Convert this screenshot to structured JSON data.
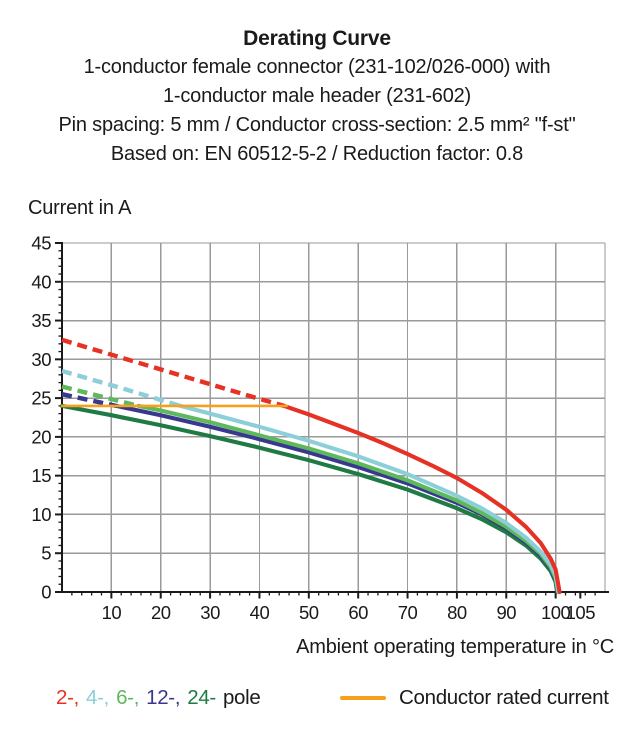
{
  "header": {
    "title": "Derating Curve",
    "subtitle_lines": [
      "1-conductor female connector (231-102/026-000) with",
      "1-conductor male header (231-602)",
      "Pin spacing: 5 mm / Conductor cross-section: 2.5 mm² \"f-st\"",
      "Based on: EN 60512-5-2 / Reduction factor: 0.8"
    ]
  },
  "chart_data": {
    "type": "line",
    "title": "Derating Curve",
    "xlabel": "Ambient operating temperature in °C",
    "ylabel": "Current in A",
    "xlim": [
      0,
      110
    ],
    "ylim": [
      0,
      45
    ],
    "grid": true,
    "x_gridline_step": 10,
    "y_gridline_step": 5,
    "x_minor_tick_step": 2,
    "y_minor_tick_step": 1,
    "x_tick_labels": [
      10,
      20,
      30,
      40,
      50,
      60,
      70,
      80,
      90,
      100,
      105
    ],
    "y_tick_labels": [
      0,
      5,
      10,
      15,
      20,
      25,
      30,
      35,
      40,
      45
    ],
    "rated_current_A": 24,
    "colors": {
      "grid": "#9a9a9a",
      "axis": "#1a1a1a",
      "rated": "#f6a01d"
    },
    "series": [
      {
        "name": "24-pole",
        "color": "#1f7a44",
        "dashed_until": 0,
        "points": [
          [
            0,
            24
          ],
          [
            10,
            22.8
          ],
          [
            20,
            21.5
          ],
          [
            30,
            20.1
          ],
          [
            40,
            18.6
          ],
          [
            50,
            17.0
          ],
          [
            60,
            15.2
          ],
          [
            70,
            13.2
          ],
          [
            80,
            10.8
          ],
          [
            85,
            9.4
          ],
          [
            90,
            7.7
          ],
          [
            94,
            6.0
          ],
          [
            97,
            4.3
          ],
          [
            99,
            2.7
          ],
          [
            100,
            1.3
          ],
          [
            100.3,
            0
          ]
        ]
      },
      {
        "name": "12-pole",
        "color": "#38388e",
        "dashed_until": 11,
        "points": [
          [
            0,
            25.5
          ],
          [
            11,
            24
          ],
          [
            20,
            22.8
          ],
          [
            30,
            21.3
          ],
          [
            40,
            19.7
          ],
          [
            50,
            18.0
          ],
          [
            60,
            16.1
          ],
          [
            70,
            14.0
          ],
          [
            80,
            11.5
          ],
          [
            85,
            10.0
          ],
          [
            90,
            8.2
          ],
          [
            94,
            6.4
          ],
          [
            97,
            4.7
          ],
          [
            99,
            3.0
          ],
          [
            100,
            1.6
          ],
          [
            100.4,
            0
          ]
        ]
      },
      {
        "name": "6-pole",
        "color": "#5eb85c",
        "dashed_until": 15.5,
        "points": [
          [
            0,
            26.5
          ],
          [
            8,
            25.2
          ],
          [
            15.5,
            24
          ],
          [
            20,
            23.4
          ],
          [
            30,
            21.9
          ],
          [
            40,
            20.2
          ],
          [
            50,
            18.5
          ],
          [
            60,
            16.6
          ],
          [
            70,
            14.4
          ],
          [
            80,
            11.8
          ],
          [
            85,
            10.2
          ],
          [
            90,
            8.4
          ],
          [
            94,
            6.6
          ],
          [
            97,
            4.9
          ],
          [
            99,
            3.2
          ],
          [
            100,
            1.8
          ],
          [
            100.5,
            0
          ]
        ]
      },
      {
        "name": "4-pole",
        "color": "#8ccfd8",
        "dashed_until": 24,
        "points": [
          [
            0,
            28.5
          ],
          [
            12,
            26.3
          ],
          [
            24,
            24
          ],
          [
            30,
            23.0
          ],
          [
            40,
            21.3
          ],
          [
            50,
            19.5
          ],
          [
            60,
            17.5
          ],
          [
            70,
            15.2
          ],
          [
            80,
            12.4
          ],
          [
            85,
            10.8
          ],
          [
            90,
            8.9
          ],
          [
            94,
            7.0
          ],
          [
            97,
            5.2
          ],
          [
            99,
            3.5
          ],
          [
            100,
            2.1
          ],
          [
            100.6,
            0
          ]
        ]
      },
      {
        "name": "2-pole",
        "color": "#e63224",
        "dashed_until": 45,
        "points": [
          [
            0,
            32.5
          ],
          [
            10,
            30.6
          ],
          [
            20,
            28.7
          ],
          [
            30,
            26.8
          ],
          [
            40,
            24.9
          ],
          [
            45,
            24
          ],
          [
            50,
            22.9
          ],
          [
            55,
            21.7
          ],
          [
            60,
            20.5
          ],
          [
            65,
            19.2
          ],
          [
            70,
            17.8
          ],
          [
            75,
            16.3
          ],
          [
            80,
            14.7
          ],
          [
            85,
            12.8
          ],
          [
            90,
            10.6
          ],
          [
            94,
            8.4
          ],
          [
            97,
            6.3
          ],
          [
            99,
            4.3
          ],
          [
            100,
            2.9
          ],
          [
            100.8,
            0
          ]
        ]
      },
      {
        "name": "Conductor rated current",
        "color": "#f6a01d",
        "width": 2.6,
        "points": [
          [
            0,
            24
          ],
          [
            45.5,
            24
          ]
        ]
      }
    ]
  },
  "legend": {
    "pole_items": [
      {
        "label": "2-,",
        "color": "#e63224"
      },
      {
        "label": "4-,",
        "color": "#8ccfd8"
      },
      {
        "label": "6-,",
        "color": "#5eb85c"
      },
      {
        "label": "12-,",
        "color": "#38388e"
      },
      {
        "label": "24-",
        "color": "#1f7a44"
      }
    ],
    "pole_suffix": "pole",
    "rated_label": "Conductor rated current",
    "rated_color": "#f6a01d"
  }
}
